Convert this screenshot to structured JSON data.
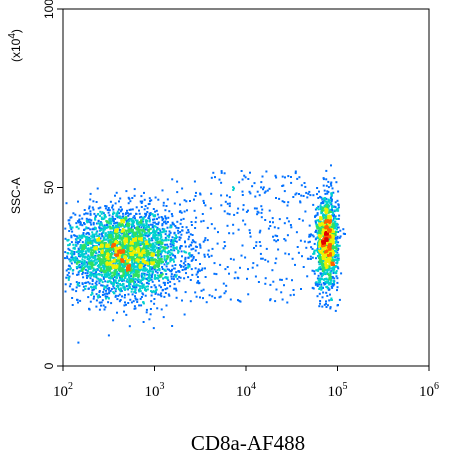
{
  "chart_data": {
    "type": "scatter",
    "subtype": "flow-cytometry-density-dot-plot",
    "xlabel": "CD8a-AF488",
    "ylabel": "SSC-A",
    "y_multiplier_label": "(x10",
    "y_multiplier_exp": "4",
    "x_scale": "log",
    "xlim": [
      100,
      1000000
    ],
    "ylim": [
      0,
      100
    ],
    "x_ticks": [
      {
        "base": "10",
        "exp": "2",
        "value": 100
      },
      {
        "base": "10",
        "exp": "3",
        "value": 1000
      },
      {
        "base": "10",
        "exp": "4",
        "value": 10000
      },
      {
        "base": "10",
        "exp": "5",
        "value": 100000
      },
      {
        "base": "10",
        "exp": "6",
        "value": 1000000
      }
    ],
    "y_ticks": [
      {
        "label": "0",
        "value": 0
      },
      {
        "label": "50",
        "value": 50
      },
      {
        "label": "100",
        "value": 100
      }
    ],
    "grid": false,
    "colormap": [
      "#0000c8",
      "#0070ff",
      "#00d0d0",
      "#30e060",
      "#f0f000",
      "#ff6000",
      "#e00000"
    ],
    "populations": [
      {
        "center_x": 450,
        "center_y": 32,
        "spread_log_x": 0.32,
        "spread_y": 6,
        "relative_count": 0.68
      },
      {
        "center_x": 75000,
        "center_y": 35,
        "spread_log_x": 0.06,
        "spread_y": 6.5,
        "relative_count": 0.26
      },
      {
        "center_x_range": [
          1500,
          50000
        ],
        "center_y_range": [
          18,
          55
        ],
        "relative_count": 0.06
      }
    ]
  }
}
